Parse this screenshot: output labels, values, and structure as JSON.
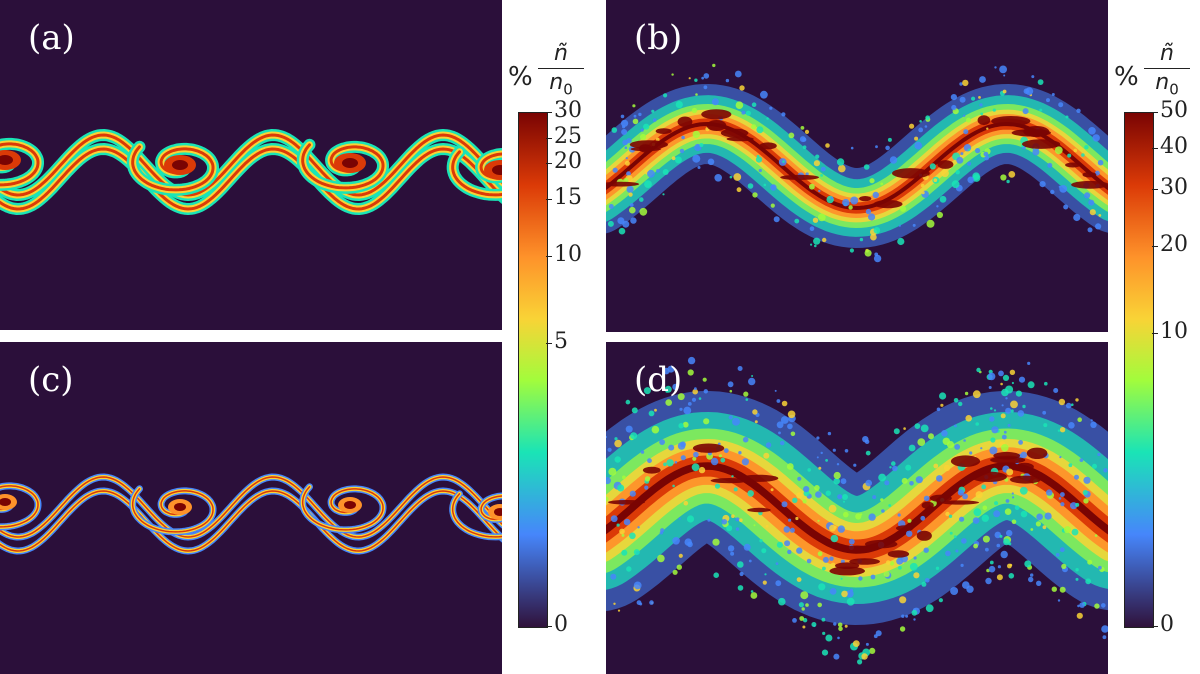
{
  "chart_data": [
    {
      "type": "heatmap",
      "panel_label": "(a)",
      "title": "",
      "xlabel": "",
      "ylabel": "",
      "description_of_field": "",
      "colorbar": {
        "label_prefix": "%",
        "label_num": "ñ",
        "label_den": "n",
        "label_den_sub": "0",
        "range": [
          0,
          30
        ],
        "ticks": [
          0,
          5,
          10,
          15,
          20,
          25,
          30
        ],
        "tick_labels": [
          "0",
          "5",
          "10",
          "15",
          "20",
          "25",
          "30"
        ],
        "scale": "nonlinear"
      }
    },
    {
      "type": "heatmap",
      "panel_label": "(b)",
      "title": "",
      "xlabel": "",
      "ylabel": "",
      "colorbar": {
        "label_prefix": "%",
        "label_num": "ñ",
        "label_den": "n",
        "label_den_sub": "0",
        "range": [
          0,
          50
        ],
        "ticks": [
          0,
          10,
          20,
          30,
          40,
          50
        ],
        "tick_labels": [
          "0",
          "10",
          "20",
          "30",
          "40",
          "50"
        ],
        "scale": "nonlinear"
      }
    },
    {
      "type": "heatmap",
      "panel_label": "(c)",
      "title": "",
      "xlabel": "",
      "ylabel": ""
    },
    {
      "type": "heatmap",
      "panel_label": "(d)",
      "title": "",
      "xlabel": "",
      "ylabel": ""
    }
  ],
  "colors": {
    "background": "#2b0f3a",
    "low": "#30123b",
    "blue": "#4686fb",
    "cyan": "#1ae4b6",
    "green": "#a2fc3c",
    "yellow": "#f9d336",
    "orange": "#fe922a",
    "red": "#db3a07",
    "dark_red": "#7a0403"
  }
}
